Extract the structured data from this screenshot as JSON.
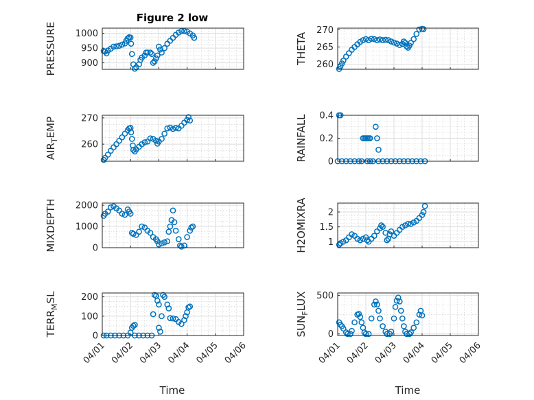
{
  "figure": {
    "title": "Figure 2 low",
    "marker_color": "#0072BD"
  },
  "chart_data": [
    {
      "type": "scatter",
      "ylabel": "PRESSURE",
      "ylim": [
        878,
        1018
      ],
      "yticks": [
        900,
        950,
        1000
      ],
      "xlim": [
        0,
        5
      ],
      "points": [
        [
          0.05,
          940
        ],
        [
          0.1,
          938
        ],
        [
          0.15,
          932
        ],
        [
          0.2,
          942
        ],
        [
          0.3,
          948
        ],
        [
          0.4,
          955
        ],
        [
          0.5,
          956
        ],
        [
          0.6,
          958
        ],
        [
          0.7,
          962
        ],
        [
          0.8,
          966
        ],
        [
          0.85,
          975
        ],
        [
          0.9,
          983
        ],
        [
          0.95,
          987
        ],
        [
          1.0,
          986
        ],
        [
          1.02,
          965
        ],
        [
          1.05,
          930
        ],
        [
          1.1,
          895
        ],
        [
          1.15,
          880
        ],
        [
          1.2,
          885
        ],
        [
          1.3,
          895
        ],
        [
          1.35,
          910
        ],
        [
          1.4,
          918
        ],
        [
          1.5,
          925
        ],
        [
          1.55,
          935
        ],
        [
          1.6,
          935
        ],
        [
          1.7,
          935
        ],
        [
          1.75,
          930
        ],
        [
          1.8,
          900
        ],
        [
          1.85,
          905
        ],
        [
          1.9,
          915
        ],
        [
          1.95,
          925
        ],
        [
          2.0,
          955
        ],
        [
          2.05,
          945
        ],
        [
          2.1,
          935
        ],
        [
          2.2,
          950
        ],
        [
          2.3,
          965
        ],
        [
          2.4,
          975
        ],
        [
          2.5,
          985
        ],
        [
          2.6,
          995
        ],
        [
          2.7,
          1003
        ],
        [
          2.8,
          1008
        ],
        [
          2.9,
          1008
        ],
        [
          3.0,
          1006
        ],
        [
          3.1,
          1000
        ],
        [
          3.2,
          993
        ],
        [
          3.25,
          985
        ]
      ]
    },
    {
      "type": "scatter",
      "ylabel": "THETA",
      "ylim": [
        258.5,
        270.5
      ],
      "yticks": [
        260,
        265,
        270
      ],
      "xlim": [
        0,
        5
      ],
      "points": [
        [
          0.05,
          258.6
        ],
        [
          0.1,
          259.4
        ],
        [
          0.15,
          260.2
        ],
        [
          0.2,
          261.0
        ],
        [
          0.3,
          262.2
        ],
        [
          0.4,
          263.2
        ],
        [
          0.5,
          264.2
        ],
        [
          0.6,
          265.0
        ],
        [
          0.7,
          265.8
        ],
        [
          0.8,
          266.5
        ],
        [
          0.9,
          267.0
        ],
        [
          1.0,
          267.3
        ],
        [
          1.1,
          267.0
        ],
        [
          1.2,
          267.4
        ],
        [
          1.3,
          267.3
        ],
        [
          1.4,
          267.0
        ],
        [
          1.5,
          267.2
        ],
        [
          1.6,
          267.0
        ],
        [
          1.7,
          267.1
        ],
        [
          1.8,
          267.0
        ],
        [
          1.9,
          266.6
        ],
        [
          2.0,
          266.3
        ],
        [
          2.1,
          266.0
        ],
        [
          2.2,
          265.6
        ],
        [
          2.3,
          265.9
        ],
        [
          2.35,
          266.6
        ],
        [
          2.4,
          266.2
        ],
        [
          2.45,
          265.2
        ],
        [
          2.5,
          264.8
        ],
        [
          2.55,
          265.4
        ],
        [
          2.6,
          266.2
        ],
        [
          2.7,
          267.3
        ],
        [
          2.8,
          268.8
        ],
        [
          2.9,
          270.1
        ],
        [
          3.0,
          270.3
        ],
        [
          3.05,
          270.2
        ]
      ]
    },
    {
      "type": "scatter",
      "ylabel": "AIR_TEMP",
      "ylim": [
        253.5,
        271
      ],
      "yticks": [
        260,
        270
      ],
      "xlim": [
        0,
        5
      ],
      "points": [
        [
          0.05,
          254.0
        ],
        [
          0.1,
          254.8
        ],
        [
          0.2,
          256.0
        ],
        [
          0.3,
          257.5
        ],
        [
          0.4,
          258.8
        ],
        [
          0.5,
          260.0
        ],
        [
          0.6,
          261.3
        ],
        [
          0.7,
          262.6
        ],
        [
          0.8,
          264.0
        ],
        [
          0.9,
          265.3
        ],
        [
          0.95,
          266.0
        ],
        [
          1.0,
          266.2
        ],
        [
          1.02,
          264.5
        ],
        [
          1.05,
          262.0
        ],
        [
          1.08,
          259.5
        ],
        [
          1.1,
          257.8
        ],
        [
          1.15,
          257.2
        ],
        [
          1.2,
          258.0
        ],
        [
          1.3,
          259.0
        ],
        [
          1.4,
          260.0
        ],
        [
          1.5,
          260.7
        ],
        [
          1.6,
          261.0
        ],
        [
          1.7,
          262.2
        ],
        [
          1.8,
          262.0
        ],
        [
          1.9,
          261.3
        ],
        [
          1.95,
          260.2
        ],
        [
          2.0,
          261.0
        ],
        [
          2.1,
          262.0
        ],
        [
          2.2,
          264.0
        ],
        [
          2.3,
          266.0
        ],
        [
          2.4,
          266.3
        ],
        [
          2.5,
          265.8
        ],
        [
          2.6,
          266.2
        ],
        [
          2.7,
          266.0
        ],
        [
          2.8,
          267.0
        ],
        [
          2.9,
          268.2
        ],
        [
          3.0,
          269.2
        ],
        [
          3.05,
          270.3
        ],
        [
          3.1,
          269.0
        ]
      ]
    },
    {
      "type": "scatter",
      "ylabel": "RAINFALL",
      "ylim": [
        0,
        0.4
      ],
      "yticks": [
        0,
        0.2,
        0.4
      ],
      "xlim": [
        0,
        5
      ],
      "points": [
        [
          0.05,
          0.4
        ],
        [
          0.1,
          0.4
        ],
        [
          0.0,
          0
        ],
        [
          0.15,
          0
        ],
        [
          0.3,
          0
        ],
        [
          0.45,
          0
        ],
        [
          0.6,
          0
        ],
        [
          0.75,
          0
        ],
        [
          0.85,
          0
        ],
        [
          0.9,
          0.2
        ],
        [
          0.95,
          0.2
        ],
        [
          1.0,
          0.2
        ],
        [
          1.05,
          0.2
        ],
        [
          1.1,
          0.2
        ],
        [
          1.15,
          0.2
        ],
        [
          1.05,
          0
        ],
        [
          1.15,
          0
        ],
        [
          1.25,
          0
        ],
        [
          1.35,
          0.3
        ],
        [
          1.4,
          0.2
        ],
        [
          1.45,
          0.1
        ],
        [
          1.45,
          0
        ],
        [
          1.6,
          0
        ],
        [
          1.75,
          0
        ],
        [
          1.9,
          0
        ],
        [
          2.05,
          0
        ],
        [
          2.2,
          0
        ],
        [
          2.35,
          0
        ],
        [
          2.5,
          0
        ],
        [
          2.65,
          0
        ],
        [
          2.8,
          0
        ],
        [
          2.95,
          0
        ],
        [
          3.1,
          0
        ]
      ]
    },
    {
      "type": "scatter",
      "ylabel": "MIXDEPTH",
      "ylim": [
        0,
        2100
      ],
      "yticks": [
        0,
        1000,
        2000
      ],
      "xlim": [
        0,
        5
      ],
      "points": [
        [
          0.05,
          1500
        ],
        [
          0.1,
          1600
        ],
        [
          0.2,
          1700
        ],
        [
          0.3,
          1900
        ],
        [
          0.4,
          1950
        ],
        [
          0.5,
          1850
        ],
        [
          0.6,
          1750
        ],
        [
          0.7,
          1600
        ],
        [
          0.8,
          1550
        ],
        [
          0.9,
          1800
        ],
        [
          0.95,
          1700
        ],
        [
          1.0,
          1600
        ],
        [
          1.05,
          700
        ],
        [
          1.1,
          650
        ],
        [
          1.2,
          600
        ],
        [
          1.3,
          750
        ],
        [
          1.4,
          1000
        ],
        [
          1.5,
          950
        ],
        [
          1.6,
          800
        ],
        [
          1.7,
          700
        ],
        [
          1.8,
          500
        ],
        [
          1.9,
          400
        ],
        [
          1.95,
          300
        ],
        [
          2.0,
          150
        ],
        [
          2.1,
          200
        ],
        [
          2.2,
          250
        ],
        [
          2.3,
          300
        ],
        [
          2.35,
          750
        ],
        [
          2.4,
          1000
        ],
        [
          2.45,
          1300
        ],
        [
          2.5,
          1750
        ],
        [
          2.55,
          1200
        ],
        [
          2.6,
          800
        ],
        [
          2.7,
          400
        ],
        [
          2.75,
          100
        ],
        [
          2.8,
          50
        ],
        [
          2.9,
          100
        ],
        [
          3.0,
          500
        ],
        [
          3.1,
          800
        ],
        [
          3.15,
          950
        ],
        [
          3.2,
          1000
        ]
      ]
    },
    {
      "type": "scatter",
      "ylabel": "H2OMIXRA",
      "ylim": [
        0.8,
        2.3
      ],
      "yticks": [
        1,
        1.5,
        2
      ],
      "xlim": [
        0,
        5
      ],
      "points": [
        [
          0.05,
          0.9
        ],
        [
          0.1,
          0.95
        ],
        [
          0.2,
          1.0
        ],
        [
          0.3,
          1.05
        ],
        [
          0.4,
          1.15
        ],
        [
          0.5,
          1.25
        ],
        [
          0.6,
          1.2
        ],
        [
          0.7,
          1.1
        ],
        [
          0.8,
          1.05
        ],
        [
          0.9,
          1.1
        ],
        [
          1.0,
          1.15
        ],
        [
          1.05,
          1.05
        ],
        [
          1.1,
          1.0
        ],
        [
          1.2,
          1.1
        ],
        [
          1.3,
          1.2
        ],
        [
          1.4,
          1.35
        ],
        [
          1.5,
          1.45
        ],
        [
          1.55,
          1.55
        ],
        [
          1.6,
          1.5
        ],
        [
          1.7,
          1.3
        ],
        [
          1.75,
          1.05
        ],
        [
          1.8,
          1.1
        ],
        [
          1.85,
          1.25
        ],
        [
          1.9,
          1.35
        ],
        [
          2.0,
          1.2
        ],
        [
          2.1,
          1.3
        ],
        [
          2.2,
          1.4
        ],
        [
          2.3,
          1.5
        ],
        [
          2.4,
          1.55
        ],
        [
          2.5,
          1.6
        ],
        [
          2.6,
          1.6
        ],
        [
          2.7,
          1.65
        ],
        [
          2.8,
          1.7
        ],
        [
          2.9,
          1.8
        ],
        [
          3.0,
          1.9
        ],
        [
          3.05,
          2.0
        ],
        [
          3.1,
          2.2
        ]
      ]
    },
    {
      "type": "scatter",
      "ylabel": "TERR_MSL",
      "ylim": [
        0,
        220
      ],
      "yticks": [
        0,
        100,
        200
      ],
      "xlim": [
        0,
        5
      ],
      "points": [
        [
          0.05,
          0
        ],
        [
          0.15,
          0
        ],
        [
          0.3,
          0
        ],
        [
          0.45,
          0
        ],
        [
          0.6,
          0
        ],
        [
          0.75,
          0
        ],
        [
          0.9,
          0
        ],
        [
          1.0,
          15
        ],
        [
          1.05,
          40
        ],
        [
          1.1,
          50
        ],
        [
          1.15,
          55
        ],
        [
          1.15,
          0
        ],
        [
          1.3,
          0
        ],
        [
          1.45,
          0
        ],
        [
          1.6,
          0
        ],
        [
          1.75,
          0
        ],
        [
          1.8,
          110
        ],
        [
          1.85,
          210
        ],
        [
          1.9,
          205
        ],
        [
          1.95,
          180
        ],
        [
          2.0,
          160
        ],
        [
          2.0,
          40
        ],
        [
          2.05,
          20
        ],
        [
          2.1,
          100
        ],
        [
          2.15,
          210
        ],
        [
          2.2,
          200
        ],
        [
          2.3,
          160
        ],
        [
          2.35,
          140
        ],
        [
          2.4,
          90
        ],
        [
          2.5,
          88
        ],
        [
          2.6,
          85
        ],
        [
          2.7,
          70
        ],
        [
          2.8,
          60
        ],
        [
          2.9,
          80
        ],
        [
          2.95,
          100
        ],
        [
          3.0,
          120
        ],
        [
          3.05,
          145
        ],
        [
          3.1,
          150
        ]
      ]
    },
    {
      "type": "scatter",
      "ylabel": "SUN_FLUX",
      "ylim": [
        -20,
        530
      ],
      "yticks": [
        0,
        500
      ],
      "xlim": [
        0,
        5
      ],
      "points": [
        [
          0.05,
          150
        ],
        [
          0.1,
          120
        ],
        [
          0.15,
          100
        ],
        [
          0.2,
          70
        ],
        [
          0.3,
          20
        ],
        [
          0.35,
          0
        ],
        [
          0.45,
          0
        ],
        [
          0.5,
          40
        ],
        [
          0.6,
          150
        ],
        [
          0.7,
          250
        ],
        [
          0.75,
          260
        ],
        [
          0.8,
          220
        ],
        [
          0.85,
          150
        ],
        [
          0.9,
          80
        ],
        [
          0.95,
          20
        ],
        [
          1.0,
          0
        ],
        [
          1.1,
          0
        ],
        [
          1.2,
          200
        ],
        [
          1.3,
          380
        ],
        [
          1.35,
          420
        ],
        [
          1.4,
          380
        ],
        [
          1.45,
          300
        ],
        [
          1.5,
          200
        ],
        [
          1.6,
          100
        ],
        [
          1.7,
          30
        ],
        [
          1.75,
          0
        ],
        [
          1.85,
          0
        ],
        [
          1.9,
          30
        ],
        [
          2.0,
          200
        ],
        [
          2.05,
          350
        ],
        [
          2.1,
          430
        ],
        [
          2.15,
          470
        ],
        [
          2.2,
          420
        ],
        [
          2.25,
          300
        ],
        [
          2.3,
          200
        ],
        [
          2.35,
          100
        ],
        [
          2.4,
          30
        ],
        [
          2.45,
          0
        ],
        [
          2.55,
          0
        ],
        [
          2.6,
          20
        ],
        [
          2.7,
          80
        ],
        [
          2.8,
          150
        ],
        [
          2.9,
          250
        ],
        [
          2.95,
          300
        ],
        [
          3.0,
          240
        ]
      ]
    }
  ],
  "xaxis": {
    "tick_labels": [
      "04/01",
      "04/02",
      "04/03",
      "04/04",
      "04/05",
      "04/06"
    ],
    "label": "Time"
  }
}
